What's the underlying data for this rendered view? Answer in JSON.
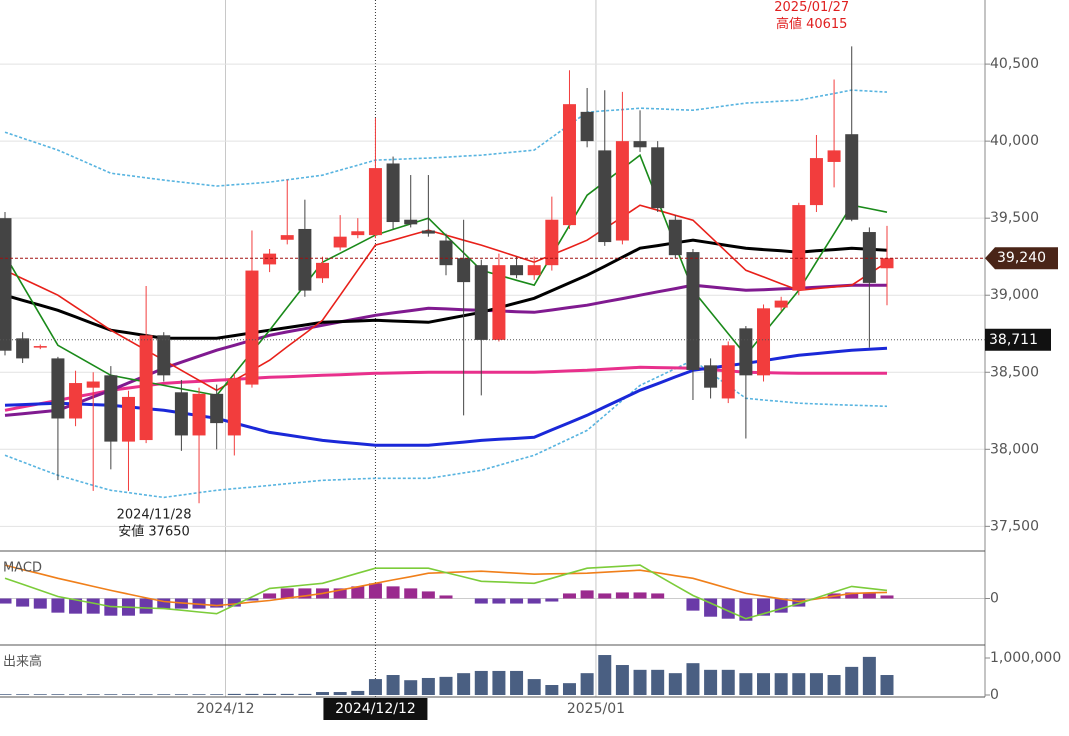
{
  "chart_data": [
    {
      "type": "candlestick",
      "categories": [
        null,
        null,
        null,
        null,
        null,
        null,
        null,
        null,
        null,
        null,
        null,
        null,
        null,
        "2024/12",
        null,
        null,
        null,
        null,
        null,
        null,
        null,
        "2024/12/12",
        null,
        null,
        null,
        null,
        null,
        null,
        null,
        null,
        null,
        null,
        null,
        null,
        "2025/01",
        null,
        null,
        null,
        null,
        null,
        null,
        null,
        null,
        null,
        null,
        null,
        null,
        null,
        null,
        null,
        null
      ],
      "open": [
        39500,
        38720,
        38660,
        38590,
        38200,
        38400,
        38480,
        38050,
        38060,
        38740,
        38370,
        38090,
        38360,
        38090,
        38420,
        39200,
        39360,
        39430,
        39110,
        39310,
        39390,
        39390,
        39855,
        39490,
        39420,
        39355,
        39240,
        39195,
        38710,
        39195,
        39130,
        39195,
        39455,
        40190,
        39940,
        39355,
        40000,
        39960,
        39490,
        39280,
        38545,
        38330,
        38785,
        38480,
        38920,
        39030,
        39585,
        39865,
        40045,
        39410,
        39175
      ],
      "high": [
        39540,
        38760,
        38680,
        38600,
        38510,
        38500,
        38540,
        38380,
        39060,
        38760,
        38450,
        38400,
        38420,
        38490,
        39420,
        39300,
        39750,
        39620,
        39250,
        39520,
        39500,
        40150,
        39900,
        39780,
        39780,
        39400,
        39490,
        39230,
        39270,
        39250,
        39250,
        39640,
        40460,
        40345,
        40330,
        40320,
        40200,
        40000,
        39520,
        39300,
        38590,
        38700,
        38800,
        38940,
        38990,
        39600,
        40040,
        40400,
        40615,
        39440,
        39450
      ],
      "low": [
        38610,
        38560,
        38650,
        37800,
        38150,
        37730,
        37870,
        37730,
        38040,
        38440,
        37990,
        37650,
        38000,
        37960,
        38400,
        39150,
        39330,
        38990,
        39080,
        39290,
        39370,
        39370,
        39430,
        39440,
        39380,
        39130,
        38220,
        38350,
        38700,
        39110,
        39100,
        39160,
        39430,
        39960,
        39320,
        39330,
        39930,
        39540,
        39240,
        38320,
        38330,
        38300,
        38070,
        38440,
        38900,
        39000,
        39540,
        39700,
        39480,
        38660,
        38935
      ],
      "close": [
        38640,
        38590,
        38670,
        38200,
        38430,
        38440,
        38050,
        38340,
        38740,
        38480,
        38090,
        38360,
        38170,
        38460,
        39160,
        39270,
        39390,
        39030,
        39210,
        39380,
        39415,
        39825,
        39475,
        39460,
        39400,
        39195,
        39085,
        38710,
        39195,
        39130,
        39195,
        39490,
        40240,
        40000,
        39345,
        40000,
        39960,
        39565,
        39260,
        38515,
        38400,
        38675,
        38480,
        38915,
        38965,
        39585,
        39890,
        39940,
        39490,
        39080,
        39240
      ],
      "colors": {
        "up": "#f23d3d",
        "down": "#444444"
      },
      "ylim": [
        37340,
        40916
      ],
      "yticks": [
        {
          "value": 37500,
          "label": "37,500"
        },
        {
          "value": 38000,
          "label": "38,000"
        },
        {
          "value": 38500,
          "label": "38,500"
        },
        {
          "value": 39000,
          "label": "39,000"
        },
        {
          "value": 39500,
          "label": "39,500"
        },
        {
          "value": 40000,
          "label": "40,000"
        },
        {
          "value": 40500,
          "label": "40,500"
        }
      ],
      "grid": true,
      "series": [
        {
          "color": "#58b4e0",
          "dash": true,
          "weight": "thin",
          "values": [
            40058,
            40019,
            39981,
            39942,
            39892,
            39842,
            39792,
            39777,
            39762,
            39747,
            39734,
            39721,
            39708,
            39717,
            39725,
            39734,
            39749,
            39764,
            39779,
            39812,
            39844,
            39877,
            39881,
            39886,
            39890,
            39896,
            39903,
            39909,
            39920,
            39931,
            39942,
            40024,
            40106,
            40188,
            40197,
            40205,
            40214,
            40210,
            40205,
            40201,
            40216,
            40232,
            40247,
            40253,
            40260,
            40266,
            40288,
            40309,
            40331,
            40325,
            40318
          ]
        },
        {
          "color": "#58b4e0",
          "dash": true,
          "weight": "thin",
          "values": [
            37961,
            37918,
            37874,
            37831,
            37799,
            37766,
            37734,
            37719,
            37703,
            37688,
            37703,
            37719,
            37734,
            37745,
            37755,
            37766,
            37777,
            37788,
            37799,
            37803,
            37808,
            37812,
            37812,
            37812,
            37812,
            37829,
            37847,
            37864,
            37896,
            37929,
            37961,
            38015,
            38069,
            38123,
            38220,
            38318,
            38415,
            38469,
            38524,
            38578,
            38496,
            38413,
            38331,
            38320,
            38310,
            38299,
            38295,
            38290,
            38286,
            38283,
            38279
          ]
        },
        {
          "color": "#e8308c",
          "weight": "thick",
          "values": [
            38253,
            38275,
            38296,
            38318,
            38340,
            38361,
            38383,
            38398,
            38413,
            38428,
            38435,
            38441,
            38448,
            38454,
            38461,
            38467,
            38471,
            38476,
            38480,
            38484,
            38489,
            38493,
            38495,
            38498,
            38500,
            38500,
            38500,
            38500,
            38500,
            38500,
            38500,
            38504,
            38509,
            38513,
            38519,
            38526,
            38532,
            38530,
            38528,
            38526,
            38517,
            38509,
            38500,
            38498,
            38495,
            38493,
            38493,
            38493,
            38493,
            38493,
            38493
          ]
        },
        {
          "color": "#1a28d8",
          "weight": "thick",
          "values": [
            38286,
            38290,
            38295,
            38299,
            38295,
            38290,
            38286,
            38275,
            38264,
            38253,
            38236,
            38218,
            38201,
            38171,
            38140,
            38110,
            38093,
            38075,
            38058,
            38047,
            38037,
            38026,
            38026,
            38026,
            38026,
            38037,
            38047,
            38058,
            38065,
            38071,
            38078,
            38126,
            38173,
            38221,
            38275,
            38329,
            38383,
            38426,
            38470,
            38513,
            38528,
            38543,
            38558,
            38575,
            38593,
            38610,
            38621,
            38632,
            38643,
            38650,
            38656
          ]
        },
        {
          "color": "#801a90",
          "weight": "thick",
          "values": [
            38220,
            38231,
            38242,
            38253,
            38296,
            38340,
            38383,
            38431,
            38478,
            38526,
            38565,
            38604,
            38643,
            38675,
            38708,
            38740,
            38762,
            38783,
            38805,
            38827,
            38848,
            38870,
            38885,
            38900,
            38915,
            38911,
            38906,
            38902,
            38898,
            38893,
            38889,
            38904,
            38920,
            38935,
            38957,
            38978,
            39000,
            39022,
            39043,
            39065,
            39054,
            39043,
            39032,
            39036,
            39041,
            39045,
            39052,
            39058,
            39065,
            39065,
            39065
          ]
        },
        {
          "color": "#000000",
          "weight": "thick",
          "values": [
            39000,
            38967,
            38935,
            38902,
            38859,
            38816,
            38773,
            38756,
            38738,
            38721,
            38721,
            38721,
            38721,
            38738,
            38756,
            38773,
            38790,
            38807,
            38824,
            38829,
            38833,
            38838,
            38833,
            38829,
            38824,
            38846,
            38867,
            38889,
            38919,
            38950,
            38980,
            39030,
            39080,
            39130,
            39188,
            39247,
            39305,
            39322,
            39340,
            39357,
            39340,
            39322,
            39305,
            39296,
            39288,
            39279,
            39288,
            39296,
            39305,
            39299,
            39292
          ]
        },
        {
          "color": "#e8201a",
          "weight": "thin",
          "values": [
            39162,
            39108,
            39054,
            39000,
            38924,
            38849,
            38773,
            38708,
            38643,
            38578,
            38513,
            38448,
            38383,
            38448,
            38513,
            38578,
            38665,
            38751,
            38838,
            39000,
            39163,
            39325,
            39357,
            39390,
            39422,
            39390,
            39357,
            39325,
            39288,
            39251,
            39214,
            39262,
            39309,
            39357,
            39433,
            39508,
            39584,
            39552,
            39519,
            39487,
            39379,
            39270,
            39162,
            39119,
            39075,
            39032,
            39043,
            39054,
            39065,
            39140,
            39214
          ]
        },
        {
          "color": "#1a8a1a",
          "weight": "thin",
          "values": [
            39260,
            39065,
            38870,
            38675,
            38610,
            38545,
            38480,
            38458,
            38437,
            38415,
            38393,
            38372,
            38350,
            38491,
            38632,
            38773,
            38920,
            39067,
            39214,
            39273,
            39331,
            39390,
            39427,
            39463,
            39500,
            39387,
            39275,
            39162,
            39130,
            39097,
            39065,
            39260,
            39454,
            39649,
            39736,
            39822,
            39909,
            39617,
            39324,
            39032,
            38891,
            38751,
            38610,
            38751,
            38891,
            39032,
            39216,
            39400,
            39584,
            39562,
            39539
          ]
        }
      ],
      "last_price": {
        "value": 39240,
        "label": "39,240"
      },
      "ref_line": {
        "value": 38711,
        "label": "38,711"
      },
      "high_note": [
        "2025/01/27",
        "高値 40615"
      ],
      "low_note": [
        "2024/11/28",
        "安値 37650"
      ]
    },
    {
      "type": "macd",
      "title": "MACD",
      "ylim": [
        -230,
        230
      ],
      "yticks": [
        0
      ],
      "histogram": {
        "color": "#6a3aa8",
        "color_pos": "#9a2a8e",
        "values": [
          -25,
          -40,
          -50,
          -70,
          -75,
          -75,
          -85,
          -85,
          -75,
          -50,
          -50,
          -50,
          -45,
          -40,
          -10,
          25,
          50,
          50,
          50,
          50,
          60,
          75,
          60,
          50,
          35,
          15,
          0,
          -25,
          -25,
          -25,
          -25,
          -15,
          25,
          40,
          25,
          30,
          30,
          25,
          0,
          -60,
          -90,
          -100,
          -110,
          -85,
          -70,
          -40,
          0,
          25,
          30,
          25,
          15
        ]
      },
      "series": [
        {
          "color": "#f07f1a",
          "weight": "thin",
          "values": [
            165,
            143,
            122,
            100,
            80,
            60,
            40,
            22,
            3,
            -15,
            -22,
            -28,
            -35,
            -27,
            -18,
            -10,
            2,
            13,
            25,
            42,
            58,
            75,
            92,
            108,
            125,
            128,
            132,
            135,
            130,
            125,
            120,
            122,
            123,
            125,
            130,
            135,
            140,
            127,
            113,
            100,
            75,
            50,
            25,
            12,
            -2,
            -15,
            -2,
            12,
            25,
            28,
            30
          ]
        },
        {
          "color": "#7ccc3a",
          "weight": "thin",
          "values": [
            100,
            70,
            40,
            10,
            -7,
            -23,
            -40,
            -43,
            -47,
            -50,
            -58,
            -67,
            -75,
            -33,
            8,
            50,
            58,
            67,
            75,
            100,
            125,
            150,
            150,
            150,
            150,
            128,
            107,
            85,
            82,
            78,
            75,
            100,
            125,
            150,
            155,
            160,
            165,
            115,
            65,
            15,
            -23,
            -62,
            -100,
            -75,
            -50,
            -25,
            3,
            32,
            60,
            50,
            40
          ]
        }
      ]
    },
    {
      "type": "volume",
      "title": "出来高",
      "ylim": [
        0,
        1270000
      ],
      "yticks": [
        0,
        {
          "value": 1000000,
          "label": "1,000,000"
        }
      ],
      "color": "#4a5f82",
      "values": [
        20000,
        20000,
        20000,
        20000,
        20000,
        20000,
        20000,
        20000,
        20000,
        20000,
        20000,
        20000,
        20000,
        30000,
        30000,
        30000,
        30000,
        30000,
        80000,
        80000,
        110000,
        430000,
        540000,
        400000,
        460000,
        490000,
        590000,
        650000,
        650000,
        650000,
        430000,
        270000,
        320000,
        590000,
        1080000,
        810000,
        680000,
        680000,
        590000,
        860000,
        680000,
        680000,
        590000,
        590000,
        590000,
        590000,
        590000,
        540000,
        760000,
        1030000,
        540000
      ]
    }
  ]
}
